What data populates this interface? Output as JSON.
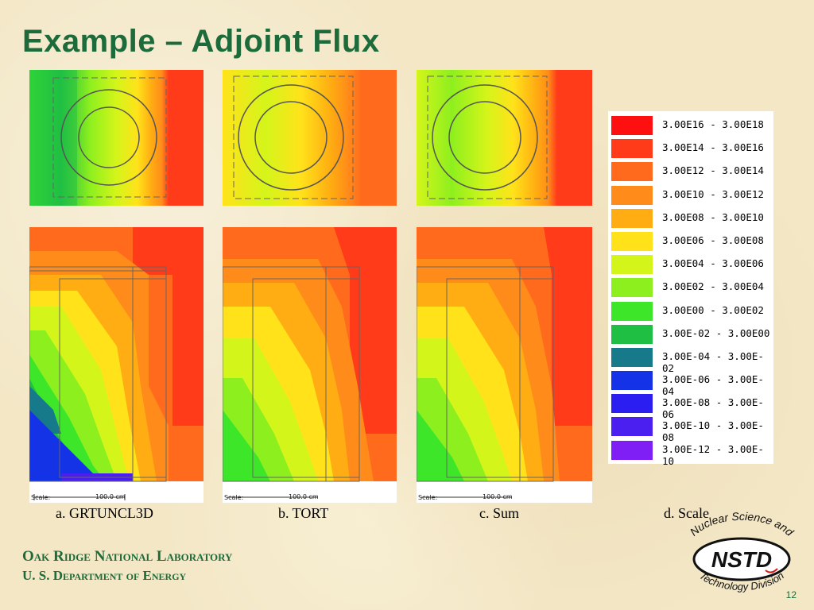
{
  "title": "Example – Adjoint Flux",
  "captions": [
    "a. GRTUNCL3D",
    "b. TORT",
    "c. Sum",
    "d. Scale"
  ],
  "scale_bar_label": "Scale:",
  "scale_bar_value": "100.0 cm",
  "legend": [
    {
      "range": "3.00E16 - 3.00E18",
      "color": "#ff1010"
    },
    {
      "range": "3.00E14 - 3.00E16",
      "color": "#ff3b1a"
    },
    {
      "range": "3.00E12 - 3.00E14",
      "color": "#ff6a1c"
    },
    {
      "range": "3.00E10 - 3.00E12",
      "color": "#ff8c1a"
    },
    {
      "range": "3.00E08 - 3.00E10",
      "color": "#ffad12"
    },
    {
      "range": "3.00E06 - 3.00E08",
      "color": "#ffe21a"
    },
    {
      "range": "3.00E04 - 3.00E06",
      "color": "#d4f51a"
    },
    {
      "range": "3.00E02 - 3.00E04",
      "color": "#8eef1e"
    },
    {
      "range": "3.00E00 - 3.00E02",
      "color": "#3ee62a"
    },
    {
      "range": "3.00E-02 - 3.00E00",
      "color": "#1fbf44"
    },
    {
      "range": "3.00E-04 - 3.00E-02",
      "color": "#177a8a"
    },
    {
      "range": "3.00E-06 - 3.00E-04",
      "color": "#1432e6"
    },
    {
      "range": "3.00E-08 - 3.00E-06",
      "color": "#2a1ef0"
    },
    {
      "range": "3.00E-10 - 3.00E-08",
      "color": "#4a1ff0"
    },
    {
      "range": "3.00E-12 - 3.00E-10",
      "color": "#7f1ff5"
    }
  ],
  "footer": {
    "org": "Oak Ridge National Laboratory",
    "dept": "U. S. Department of Energy"
  },
  "logo": {
    "top_text": "Nuclear Science and",
    "acronym": "NSTD",
    "bottom_text": "Technology Division"
  },
  "page_number": "12"
}
